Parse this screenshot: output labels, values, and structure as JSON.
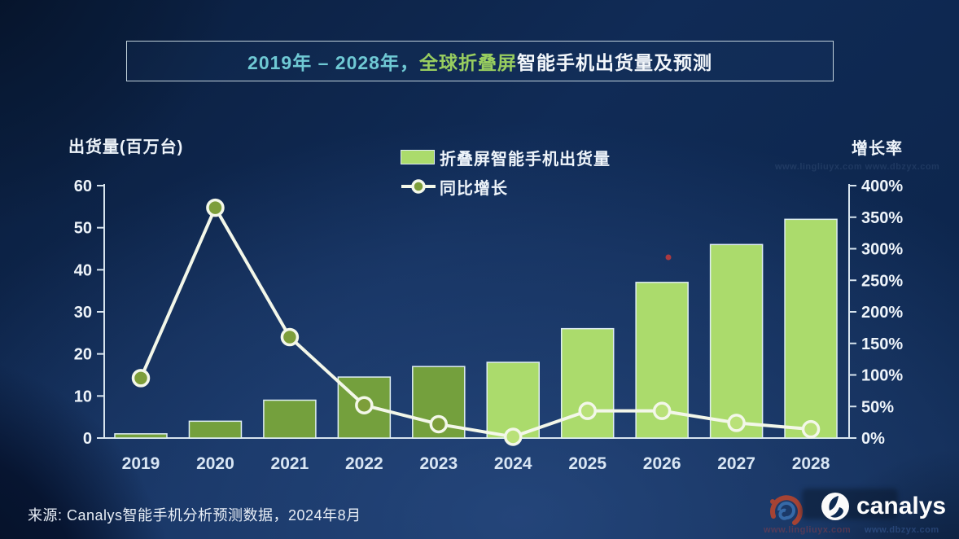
{
  "title": {
    "part1": "2019年 – 2028年，",
    "part2": "全球折叠屏",
    "part3": "智能手机出货量及预测"
  },
  "axes": {
    "left_title": "出货量(百万台)",
    "right_title": "增长率"
  },
  "legend": {
    "bar_label": "折叠屏智能手机出货量",
    "line_label": "同比增长"
  },
  "source": "来源: Canalys智能手机分析预测数据，2024年8月",
  "logo": {
    "text": "canalys"
  },
  "watermark": {
    "url1": "www.lingliuyx.com",
    "url2": "www.dbzyx.com",
    "top": "www.lingliuyx.com   www.dbzyx.com"
  },
  "colors": {
    "bar_historical": "#74a03d",
    "bar_forecast": "#abdb6c",
    "bar_border": "#dfeef4",
    "line": "#f3f7e9",
    "marker_fill_historical": "#7d9e3a",
    "marker_fill_forecast": "#b9e178",
    "axis_line": "#d7e4ee",
    "tick_label": "#eef4fa",
    "year_label": "#d9e6f4",
    "title_teal": "#6fc9d4",
    "title_green": "#98cd5f",
    "artifact_dot": "#c43b3b"
  },
  "chart_data": {
    "type": "bar+line combo",
    "categories": [
      "2019",
      "2020",
      "2021",
      "2022",
      "2023",
      "2024",
      "2025",
      "2026",
      "2027",
      "2028"
    ],
    "series": [
      {
        "name": "折叠屏智能手机出货量",
        "type": "bar",
        "axis": "left",
        "unit": "百万台",
        "values": [
          1,
          4,
          9,
          14.5,
          17,
          18,
          26,
          37,
          46,
          52
        ]
      },
      {
        "name": "同比增长",
        "type": "line",
        "axis": "right",
        "unit": "%",
        "values": [
          95,
          365,
          160,
          52,
          22,
          2,
          43,
          43,
          24,
          14
        ]
      }
    ],
    "forecast_start_index": 5,
    "left_axis": {
      "ticks": [
        0,
        10,
        20,
        30,
        40,
        50,
        60
      ],
      "max": 60,
      "min": 0
    },
    "right_axis": {
      "ticks": [
        0,
        50,
        100,
        150,
        200,
        250,
        300,
        350,
        400
      ],
      "max": 400,
      "min": 0,
      "suffix": "%"
    },
    "grid": false,
    "legend_position": "top-center"
  }
}
